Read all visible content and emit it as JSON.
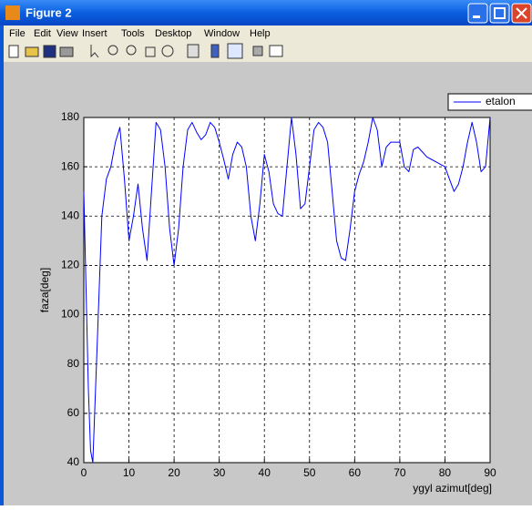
{
  "window": {
    "title": "Figure 2",
    "menu": [
      "File",
      "Edit",
      "View",
      "Insert",
      "Tools",
      "Desktop",
      "Window",
      "Help"
    ]
  },
  "chart_data": {
    "type": "line",
    "x_label": "ygyl azimut[deg]",
    "y_label": "faza[deg]",
    "x": [
      0,
      0.5,
      1,
      1.5,
      2,
      3,
      4,
      5,
      6,
      7,
      8,
      9,
      10,
      11,
      12,
      13,
      14,
      15,
      16,
      17,
      18,
      19,
      20,
      21,
      22,
      23,
      24,
      25,
      26,
      27,
      28,
      29,
      30,
      31,
      32,
      33,
      34,
      35,
      36,
      37,
      38,
      39,
      40,
      41,
      42,
      43,
      44,
      45,
      46,
      47,
      48,
      49,
      50,
      51,
      52,
      53,
      54,
      55,
      56,
      57,
      58,
      59,
      60,
      61,
      62,
      63,
      64,
      65,
      66,
      67,
      68,
      69,
      70,
      71,
      72,
      73,
      74,
      75,
      76,
      77,
      78,
      79,
      80,
      81,
      82,
      83,
      84,
      85,
      86,
      87,
      88,
      89,
      90
    ],
    "series": [
      {
        "name": "etalon",
        "color": "#0000ff",
        "values": [
          150,
          110,
          70,
          45,
          40,
          90,
          140,
          155,
          160,
          170,
          176,
          155,
          130,
          140,
          153,
          135,
          122,
          150,
          178,
          175,
          160,
          135,
          120,
          135,
          160,
          175,
          178,
          174,
          171,
          173,
          178,
          176,
          170,
          163,
          155,
          165,
          170,
          168,
          160,
          140,
          130,
          145,
          165,
          158,
          145,
          141,
          140,
          160,
          180,
          165,
          143,
          145,
          160,
          175,
          178,
          176,
          170,
          150,
          130,
          123,
          122,
          135,
          150,
          157,
          162,
          170,
          180,
          175,
          160,
          168,
          170,
          170,
          170,
          160,
          158,
          167,
          168,
          166,
          164,
          163,
          162,
          161,
          160,
          155,
          150,
          153,
          160,
          170,
          178,
          170,
          158,
          160,
          180
        ]
      }
    ],
    "xlim": [
      0,
      90
    ],
    "ylim": [
      40,
      180
    ],
    "xticks": [
      0,
      10,
      20,
      30,
      40,
      50,
      60,
      70,
      80,
      90
    ],
    "yticks": [
      40,
      60,
      80,
      100,
      120,
      140,
      160,
      180
    ],
    "grid": true,
    "legend": "northeast"
  }
}
